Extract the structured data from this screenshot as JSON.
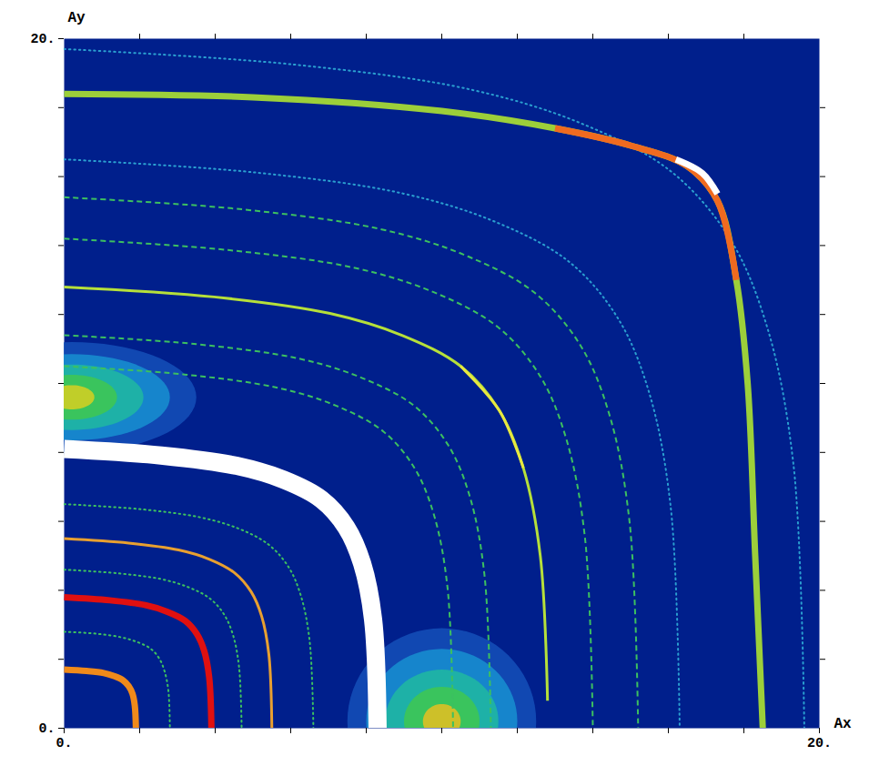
{
  "chart_data": {
    "type": "line",
    "xlabel": "Ax",
    "ylabel": "Ay",
    "xlim": [
      0,
      20
    ],
    "ylim": [
      0,
      20
    ],
    "xticks": [
      {
        "value": 0,
        "label": "0."
      },
      {
        "value": 20,
        "label": "20."
      }
    ],
    "yticks": [
      {
        "value": 0,
        "label": "0."
      },
      {
        "value": 20,
        "label": "20."
      }
    ],
    "xminorticks": [
      2,
      4,
      6,
      8,
      10,
      12,
      14,
      16,
      18
    ],
    "yminorticks": [
      2,
      4,
      6,
      8,
      10,
      12,
      14,
      16,
      18
    ],
    "color": "#001f8c",
    "blobs": [
      {
        "x": 0.2,
        "y": 9.6,
        "rx": [
          3.3,
          2.6,
          1.9,
          1.2,
          0.6
        ],
        "ry": [
          1.6,
          1.25,
          0.95,
          0.65,
          0.35
        ],
        "colors": [
          "#1450b8",
          "#1890d0",
          "#20b8a0",
          "#40c850",
          "#d8d020"
        ]
      },
      {
        "x": 10.0,
        "y": 0.2,
        "rx": [
          2.5,
          2.0,
          1.5,
          1.0,
          0.5
        ],
        "ry": [
          2.7,
          2.1,
          1.5,
          1.0,
          0.5
        ],
        "colors": [
          "#1450b8",
          "#1890d0",
          "#20b8a0",
          "#40c850",
          "#e8c020"
        ]
      }
    ],
    "series": [
      {
        "color": "#3cc060",
        "line_style": "dashed",
        "x": [
          0,
          3.19,
          5.67,
          7.21,
          8.45,
          9.27,
          9.79,
          10.15,
          10.3
        ],
        "y": [
          10.5,
          10.26,
          9.87,
          9.35,
          8.61,
          7.56,
          6.2,
          4.1,
          0
        ]
      },
      {
        "color": "#3cc060",
        "line_style": "dashed",
        "x": [
          0,
          3.5,
          6.22,
          7.91,
          9.27,
          10.17,
          10.74,
          11.13,
          11.3
        ],
        "y": [
          11.4,
          11.14,
          10.72,
          10.15,
          9.35,
          8.21,
          6.73,
          4.45,
          0
        ]
      },
      {
        "color": "#3cc060",
        "line_style": "dashed",
        "x": [
          0,
          4.34,
          7.7,
          9.8,
          11.48,
          12.6,
          13.3,
          13.79,
          14.0
        ],
        "y": [
          14.2,
          13.87,
          13.35,
          12.64,
          11.64,
          10.22,
          8.38,
          5.54,
          0
        ]
      },
      {
        "color": "#3cc060",
        "line_style": "dashed",
        "x": [
          0,
          4.71,
          8.36,
          10.64,
          12.46,
          13.68,
          14.44,
          14.97,
          15.2
        ],
        "y": [
          15.4,
          15.05,
          14.48,
          13.71,
          12.63,
          11.09,
          9.09,
          6.01,
          0
        ]
      },
      {
        "color": "#2a9fd0",
        "line_style": "dotted",
        "x": [
          0,
          5.05,
          8.97,
          11.41,
          13.37,
          14.67,
          15.49,
          16.06,
          16.3
        ],
        "y": [
          16.5,
          16.12,
          15.51,
          14.69,
          13.53,
          11.88,
          9.74,
          6.44,
          0
        ]
      },
      {
        "color": "#2a9fd0",
        "line_style": "dotted",
        "x": [
          0,
          6.08,
          10.78,
          13.72,
          16.07,
          17.64,
          18.62,
          19.31,
          19.6
        ],
        "y": [
          19.7,
          19.25,
          18.52,
          17.53,
          16.15,
          14.18,
          11.62,
          7.68,
          0
        ]
      },
      {
        "color": "#3cc060",
        "line_style": "dotted",
        "x": [
          0,
          0.87,
          1.54,
          1.96,
          2.3,
          2.52,
          2.66,
          2.76,
          2.8
        ],
        "y": [
          2.8,
          2.74,
          2.63,
          2.49,
          2.3,
          2.02,
          1.65,
          1.09,
          0
        ]
      },
      {
        "color": "#3cc060",
        "line_style": "dotted",
        "x": [
          0,
          1.46,
          2.59,
          3.29,
          3.85,
          4.23,
          4.47,
          4.63,
          4.7
        ],
        "y": [
          4.6,
          4.49,
          4.32,
          4.09,
          3.77,
          3.31,
          2.71,
          1.79,
          0
        ]
      },
      {
        "color": "#3cc060",
        "line_style": "dotted",
        "x": [
          0,
          2.05,
          3.63,
          4.62,
          5.41,
          5.94,
          6.27,
          6.5,
          6.6
        ],
        "y": [
          6.5,
          6.35,
          6.11,
          5.79,
          5.33,
          4.68,
          3.84,
          2.54,
          0
        ]
      },
      {
        "color": "#f08a1a",
        "line_style": "thick",
        "x": [
          0,
          0.59,
          1.05,
          1.33,
          1.56,
          1.71,
          1.81,
          1.87,
          1.9
        ],
        "y": [
          1.7,
          1.66,
          1.6,
          1.51,
          1.39,
          1.22,
          1.0,
          0.66,
          0
        ]
      },
      {
        "color": "#e01010",
        "line_style": "thick",
        "x": [
          0,
          1.21,
          2.15,
          2.73,
          3.2,
          3.51,
          3.71,
          3.84,
          3.9
        ],
        "y": [
          3.8,
          3.71,
          3.57,
          3.38,
          3.12,
          2.74,
          2.24,
          1.48,
          0
        ]
      },
      {
        "color": "#e8a030",
        "line_style": "solid",
        "x": [
          0,
          1.71,
          3.03,
          3.85,
          4.51,
          4.95,
          5.23,
          5.42,
          5.5
        ],
        "y": [
          5.5,
          5.37,
          5.17,
          4.9,
          4.51,
          3.96,
          3.25,
          2.15,
          0
        ]
      },
      {
        "color": "#ffffff",
        "line_style": "band",
        "x": [
          0,
          2.57,
          4.57,
          5.81,
          6.81,
          7.47,
          7.89,
          8.18,
          8.3
        ],
        "y": [
          8.1,
          7.91,
          7.61,
          7.21,
          6.64,
          5.83,
          4.78,
          3.16,
          0
        ]
      },
      {
        "color": "#b6e03a",
        "line_style": "solid",
        "x": [
          0,
          3.97,
          7.04,
          8.96,
          10.5,
          11.52,
          12.16,
          12.61,
          12.8
        ],
        "y": [
          12.8,
          12.51,
          12.03,
          11.39,
          10.5,
          9.22,
          7.55,
          4.99,
          0.8
        ]
      },
      {
        "color": "#e8e840",
        "line_style": "solid",
        "x": [
          10.5,
          11.52,
          12.16
        ],
        "y": [
          10.5,
          9.22,
          7.55
        ]
      },
      {
        "color": "#9ccf3a",
        "line_style": "thick",
        "x": [
          0,
          5,
          10,
          13,
          15,
          16.5,
          17.3,
          17.8,
          18.1,
          18.3,
          18.5
        ],
        "y": [
          18.4,
          18.3,
          17.9,
          17.4,
          16.9,
          16.3,
          15.3,
          13,
          10,
          5,
          0
        ]
      },
      {
        "color": "#f06a20",
        "line_style": "thick",
        "x": [
          13,
          15,
          16.5,
          17.3,
          17.8
        ],
        "y": [
          17.4,
          16.9,
          16.3,
          15.3,
          13
        ]
      },
      {
        "color": "#ffffff",
        "line_style": "thick",
        "x": [
          16.2,
          16.9,
          17.3
        ],
        "y": [
          16.5,
          16.1,
          15.5
        ]
      }
    ]
  }
}
